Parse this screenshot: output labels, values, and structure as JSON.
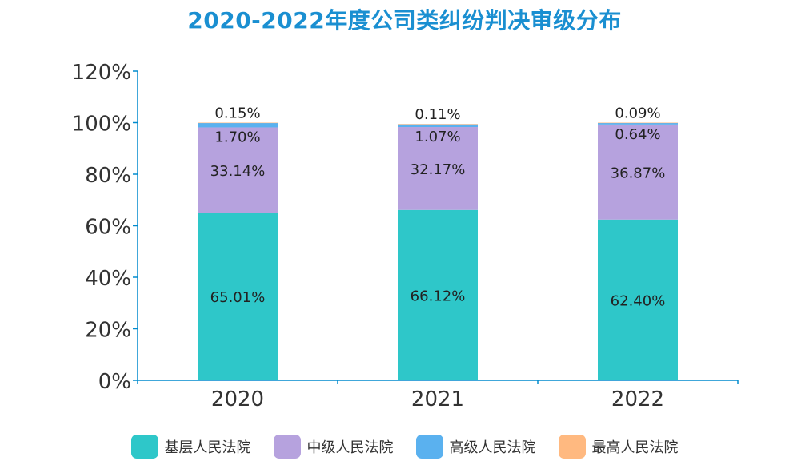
{
  "chart_data": {
    "type": "bar",
    "stacked": true,
    "title": "2020-2022年度公司类纠纷判决审级分布",
    "xlabel": "",
    "ylabel": "",
    "categories": [
      "2020",
      "2021",
      "2022"
    ],
    "ylim": [
      0,
      120
    ],
    "yticks": [
      "0%",
      "20%",
      "40%",
      "60%",
      "80%",
      "100%",
      "120%"
    ],
    "series": [
      {
        "name": "基层人民法院",
        "color": "#2ec7c9",
        "values": [
          65.01,
          66.12,
          62.4
        ],
        "labels": [
          "65.01%",
          "66.12%",
          "62.40%"
        ]
      },
      {
        "name": "中级人民法院",
        "color": "#b6a2de",
        "values": [
          33.14,
          32.17,
          36.87
        ],
        "labels": [
          "33.14%",
          "32.17%",
          "36.87%"
        ]
      },
      {
        "name": "高级人民法院",
        "color": "#5ab1ef",
        "values": [
          1.7,
          1.07,
          0.64
        ],
        "labels": [
          "1.70%",
          "1.07%",
          "0.64%"
        ]
      },
      {
        "name": "最高人民法院",
        "color": "#ffb980",
        "values": [
          0.15,
          0.11,
          0.09
        ],
        "labels": [
          "0.15%",
          "0.11%",
          "0.09%"
        ]
      }
    ],
    "legend_position": "bottom",
    "grid": false
  }
}
